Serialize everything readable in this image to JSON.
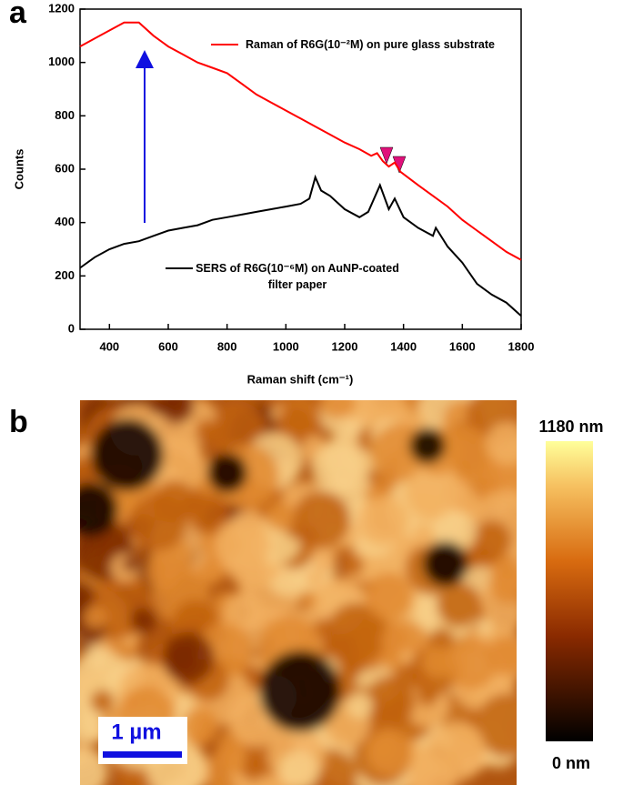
{
  "chart_data": [
    {
      "type": "line",
      "label": "a",
      "xlabel": "Raman shift (cm⁻¹)",
      "ylabel": "Counts",
      "xlim": [
        300,
        1800
      ],
      "xticks": [
        400,
        600,
        800,
        1000,
        1200,
        1400,
        1600,
        1800
      ],
      "ylim": [
        0,
        1200
      ],
      "yticks": [
        0,
        200,
        400,
        600,
        800,
        1000,
        1200
      ],
      "series": [
        {
          "name": "Raman of R6G(10⁻²M) on pure glass substrate",
          "color": "#ff0000",
          "x": [
            300,
            350,
            400,
            450,
            500,
            550,
            600,
            650,
            700,
            750,
            800,
            850,
            900,
            950,
            1000,
            1050,
            1100,
            1150,
            1200,
            1250,
            1290,
            1310,
            1330,
            1350,
            1370,
            1390,
            1450,
            1500,
            1550,
            1600,
            1650,
            1700,
            1750,
            1800
          ],
          "values": [
            1060,
            1090,
            1120,
            1150,
            1150,
            1100,
            1060,
            1030,
            1000,
            980,
            960,
            920,
            880,
            850,
            820,
            790,
            760,
            730,
            700,
            675,
            650,
            660,
            630,
            610,
            625,
            590,
            540,
            500,
            460,
            410,
            370,
            330,
            290,
            260
          ]
        },
        {
          "name": "SERS of R6G(10⁻⁶M) on AuNP-coated filter paper",
          "color": "#000000",
          "x": [
            300,
            350,
            400,
            450,
            500,
            550,
            600,
            650,
            700,
            750,
            800,
            850,
            900,
            950,
            1000,
            1050,
            1080,
            1100,
            1120,
            1150,
            1200,
            1250,
            1280,
            1320,
            1350,
            1370,
            1400,
            1450,
            1500,
            1510,
            1550,
            1600,
            1650,
            1700,
            1750,
            1800
          ],
          "values": [
            230,
            270,
            300,
            320,
            330,
            350,
            370,
            380,
            390,
            410,
            420,
            430,
            440,
            450,
            460,
            470,
            490,
            570,
            520,
            500,
            450,
            420,
            440,
            540,
            450,
            490,
            420,
            380,
            350,
            380,
            310,
            250,
            170,
            130,
            100,
            50
          ]
        }
      ]
    },
    {
      "type": "image",
      "label": "b",
      "colorbar": {
        "max_label": "1180 nm",
        "min_label": "0 nm"
      },
      "scale_bar": "1 µm"
    }
  ]
}
